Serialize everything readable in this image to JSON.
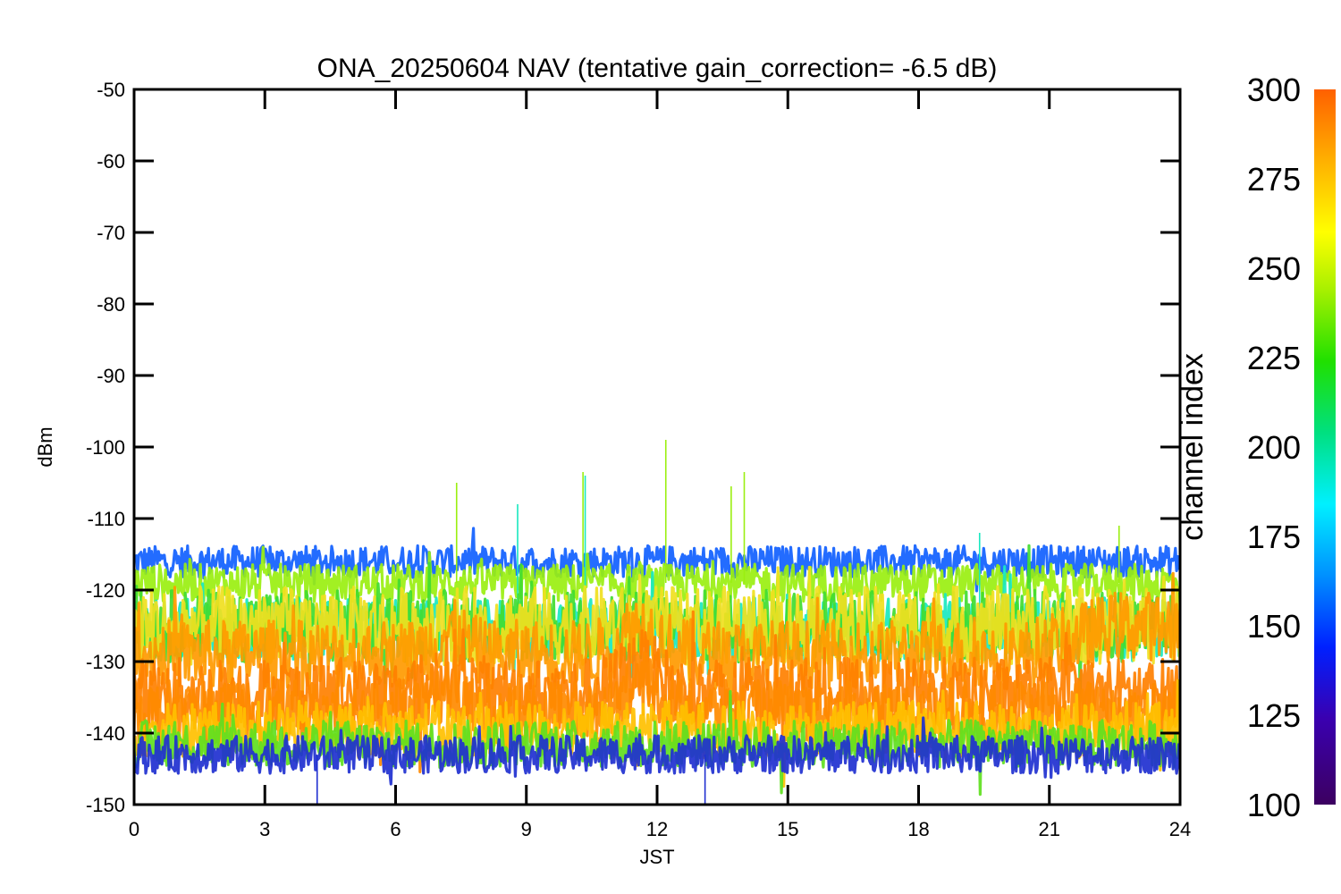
{
  "chart_data": {
    "type": "line",
    "title": "ONA_20250604 NAV (tentative gain_correction= -6.5 dB)",
    "xlabel": "JST",
    "ylabel": "dBm",
    "xlim": [
      0,
      24
    ],
    "ylim": [
      -150,
      -50
    ],
    "x_ticks": [
      0,
      3,
      6,
      9,
      12,
      15,
      18,
      21,
      24
    ],
    "y_ticks": [
      -50,
      -60,
      -70,
      -80,
      -90,
      -100,
      -110,
      -120,
      -130,
      -140,
      -150
    ],
    "colorbar": {
      "label": "channel index",
      "range": [
        100,
        300
      ],
      "ticks": [
        300,
        275,
        250,
        225,
        200,
        175,
        150,
        125,
        100
      ]
    },
    "series": [
      {
        "channel": 150,
        "color": "#1060ff",
        "level": -116.0,
        "noise": 1.0,
        "spikes": []
      },
      {
        "channel": 245,
        "color": "#9aef10",
        "level": -119.0,
        "noise": 1.2,
        "spikes": [
          [
            7.4,
            -105
          ],
          [
            10.3,
            -103.5
          ],
          [
            12.2,
            -99
          ],
          [
            13.7,
            -105.5
          ],
          [
            14.0,
            -103.5
          ],
          [
            22.6,
            -111
          ]
        ]
      },
      {
        "channel": 185,
        "color": "#18e8c0",
        "level": -125.5,
        "noise": 2.0,
        "spikes": [
          [
            8.8,
            -108
          ],
          [
            10.35,
            -104
          ],
          [
            19.4,
            -112
          ]
        ]
      },
      {
        "channel": 230,
        "color": "#40dc30",
        "level": -125.0,
        "noise": 2.3,
        "spikes": []
      },
      {
        "channel": 265,
        "color": "#f0e020",
        "level": -125.0,
        "noise": 2.5,
        "spikes": []
      },
      {
        "channel": 285,
        "color": "#ff9a00",
        "level": -129.0,
        "noise": 2.2,
        "spikes": []
      },
      {
        "channel": 295,
        "color": "#ff8000",
        "level": -134.5,
        "noise": 2.3,
        "spikes": []
      },
      {
        "channel": 290,
        "color": "#ff8a00",
        "level": -137.0,
        "noise": 2.0,
        "spikes": []
      },
      {
        "channel": 275,
        "color": "#ffc000",
        "level": -139.5,
        "noise": 1.8,
        "spikes": []
      },
      {
        "channel": 240,
        "color": "#60e020",
        "level": -141.5,
        "noise": 1.5,
        "spikes": []
      },
      {
        "channel": 130,
        "color": "#2030d0",
        "level": -143.0,
        "noise": 1.2,
        "spikes": [
          [
            4.2,
            -150
          ],
          [
            13.1,
            -150
          ]
        ]
      }
    ]
  }
}
